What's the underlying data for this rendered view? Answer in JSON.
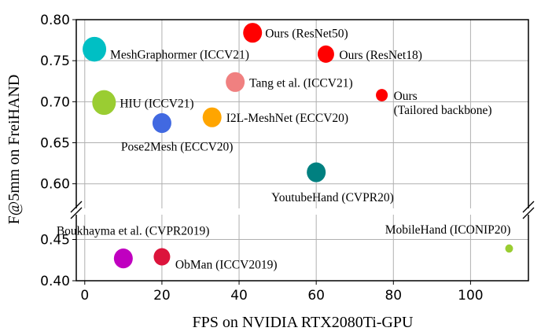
{
  "chart_data": {
    "type": "scatter",
    "xlabel": "FPS on NVIDIA RTX2080Ti-GPU",
    "ylabel": "F@5mm on FreiHAND",
    "xlim": [
      -2.2,
      115
    ],
    "ylim_upper": [
      0.57,
      0.8
    ],
    "ylim_lower": [
      0.4,
      0.48
    ],
    "broken_y_axis": true,
    "grid": true,
    "x_ticks": [
      "0",
      "20",
      "40",
      "60",
      "80",
      "100"
    ],
    "y_ticks_upper": [
      "0.60",
      "0.65",
      "0.70",
      "0.75",
      "0.80"
    ],
    "y_ticks_lower": [
      "0.40",
      "0.45"
    ],
    "points": [
      {
        "label": "MeshGraphormer (ICCV21)",
        "x": 2.5,
        "y": 0.764,
        "color": "#00BFC4",
        "size": "large"
      },
      {
        "label": "HIU (ICCV21)",
        "x": 5,
        "y": 0.699,
        "color": "#9ACD32",
        "size": "large"
      },
      {
        "label": "Pose2Mesh (ECCV20)",
        "x": 20,
        "y": 0.674,
        "color": "#4169E1",
        "size": "medium"
      },
      {
        "label": "I2L-MeshNet (ECCV20)",
        "x": 33,
        "y": 0.681,
        "color": "#FFA500",
        "size": "medium"
      },
      {
        "label": "Tang et al. (ICCV21)",
        "x": 39,
        "y": 0.724,
        "color": "#F08080",
        "size": "medium"
      },
      {
        "label": "Ours (ResNet50)",
        "x": 43.5,
        "y": 0.784,
        "color": "#FF0000",
        "size": "medium"
      },
      {
        "label": "Ours (ResNet18)",
        "x": 62.5,
        "y": 0.758,
        "color": "#FF0000",
        "size": "small"
      },
      {
        "label": "Ours",
        "label2": "(Tailored backbone)",
        "x": 77,
        "y": 0.708,
        "color": "#FF0000",
        "size": "tiny"
      },
      {
        "label": "YoutubeHand (CVPR20)",
        "x": 60,
        "y": 0.614,
        "color": "#008080",
        "size": "medium"
      },
      {
        "label": "Boukhayma et al. (CVPR2019)",
        "x": 10,
        "y": 0.427,
        "color": "#C000C0",
        "size": "medium"
      },
      {
        "label": "ObMan (ICCV2019)",
        "x": 20,
        "y": 0.429,
        "color": "#DC143C",
        "size": "small"
      },
      {
        "label": "MobileHand (ICONIP20)",
        "x": 110,
        "y": 0.439,
        "color": "#9ACD32",
        "size": "dot"
      }
    ]
  }
}
